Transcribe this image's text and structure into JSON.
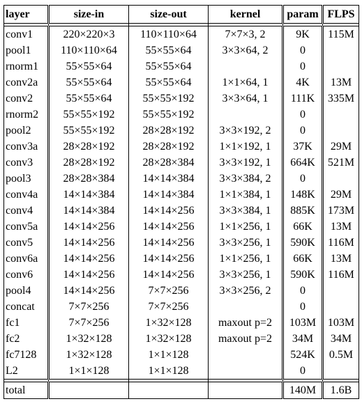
{
  "headers": [
    "layer",
    "size-in",
    "size-out",
    "kernel",
    "param",
    "FLPS"
  ],
  "rows": [
    [
      "conv1",
      "220×220×3",
      "110×110×64",
      "7×7×3, 2",
      "9K",
      "115M"
    ],
    [
      "pool1",
      "110×110×64",
      "55×55×64",
      "3×3×64, 2",
      "0",
      ""
    ],
    [
      "rnorm1",
      "55×55×64",
      "55×55×64",
      "",
      "0",
      ""
    ],
    [
      "conv2a",
      "55×55×64",
      "55×55×64",
      "1×1×64, 1",
      "4K",
      "13M"
    ],
    [
      "conv2",
      "55×55×64",
      "55×55×192",
      "3×3×64, 1",
      "111K",
      "335M"
    ],
    [
      "rnorm2",
      "55×55×192",
      "55×55×192",
      "",
      "0",
      ""
    ],
    [
      "pool2",
      "55×55×192",
      "28×28×192",
      "3×3×192, 2",
      "0",
      ""
    ],
    [
      "conv3a",
      "28×28×192",
      "28×28×192",
      "1×1×192, 1",
      "37K",
      "29M"
    ],
    [
      "conv3",
      "28×28×192",
      "28×28×384",
      "3×3×192, 1",
      "664K",
      "521M"
    ],
    [
      "pool3",
      "28×28×384",
      "14×14×384",
      "3×3×384, 2",
      "0",
      ""
    ],
    [
      "conv4a",
      "14×14×384",
      "14×14×384",
      "1×1×384, 1",
      "148K",
      "29M"
    ],
    [
      "conv4",
      "14×14×384",
      "14×14×256",
      "3×3×384, 1",
      "885K",
      "173M"
    ],
    [
      "conv5a",
      "14×14×256",
      "14×14×256",
      "1×1×256, 1",
      "66K",
      "13M"
    ],
    [
      "conv5",
      "14×14×256",
      "14×14×256",
      "3×3×256, 1",
      "590K",
      "116M"
    ],
    [
      "conv6a",
      "14×14×256",
      "14×14×256",
      "1×1×256, 1",
      "66K",
      "13M"
    ],
    [
      "conv6",
      "14×14×256",
      "14×14×256",
      "3×3×256, 1",
      "590K",
      "116M"
    ],
    [
      "pool4",
      "14×14×256",
      "7×7×256",
      "3×3×256, 2",
      "0",
      ""
    ],
    [
      "concat",
      "7×7×256",
      "7×7×256",
      "",
      "0",
      ""
    ],
    [
      "fc1",
      "7×7×256",
      "1×32×128",
      "maxout p=2",
      "103M",
      "103M"
    ],
    [
      "fc2",
      "1×32×128",
      "1×32×128",
      "maxout p=2",
      "34M",
      "34M"
    ],
    [
      "fc7128",
      "1×32×128",
      "1×1×128",
      "",
      "524K",
      "0.5M"
    ],
    [
      "L2",
      "1×1×128",
      "1×1×128",
      "",
      "0",
      ""
    ]
  ],
  "total": {
    "label": "total",
    "param": "140M",
    "flps": "1.6B"
  }
}
